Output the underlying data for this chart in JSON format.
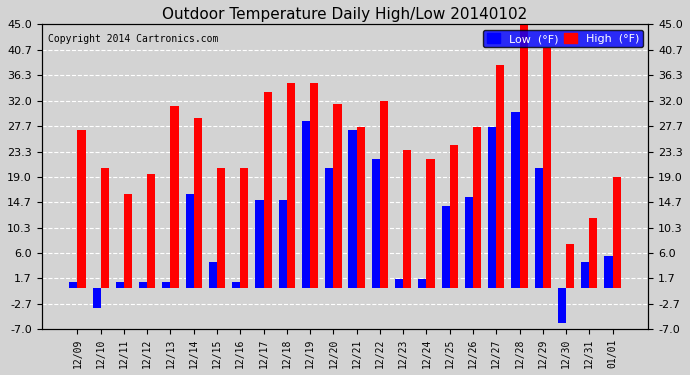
{
  "title": "Outdoor Temperature Daily High/Low 20140102",
  "copyright": "Copyright 2014 Cartronics.com",
  "legend_low": "Low  (°F)",
  "legend_high": "High  (°F)",
  "dates": [
    "12/09",
    "12/10",
    "12/11",
    "12/12",
    "12/13",
    "12/14",
    "12/15",
    "12/16",
    "12/17",
    "12/18",
    "12/19",
    "12/20",
    "12/21",
    "12/22",
    "12/23",
    "12/24",
    "12/25",
    "12/26",
    "12/27",
    "12/28",
    "12/29",
    "12/30",
    "12/31",
    "01/01"
  ],
  "high": [
    27.0,
    20.5,
    16.0,
    19.5,
    31.0,
    29.0,
    20.5,
    20.5,
    33.5,
    35.0,
    35.0,
    31.5,
    27.5,
    32.0,
    23.5,
    22.0,
    24.5,
    27.5,
    38.0,
    45.0,
    41.0,
    7.5,
    12.0,
    19.0
  ],
  "low": [
    1.0,
    -3.5,
    1.0,
    1.0,
    1.0,
    16.0,
    4.5,
    1.0,
    15.0,
    15.0,
    28.5,
    20.5,
    27.0,
    22.0,
    1.5,
    1.5,
    14.0,
    15.5,
    27.5,
    30.0,
    20.5,
    -6.0,
    4.5,
    5.5
  ],
  "ylim": [
    -7.0,
    45.0
  ],
  "yticks": [
    -7.0,
    -2.7,
    1.7,
    6.0,
    10.3,
    14.7,
    19.0,
    23.3,
    27.7,
    32.0,
    36.3,
    40.7,
    45.0
  ],
  "high_color": "#ff0000",
  "low_color": "#0000ff",
  "bg_color": "#d3d3d3",
  "grid_color": "#ffffff",
  "bar_width": 0.35
}
